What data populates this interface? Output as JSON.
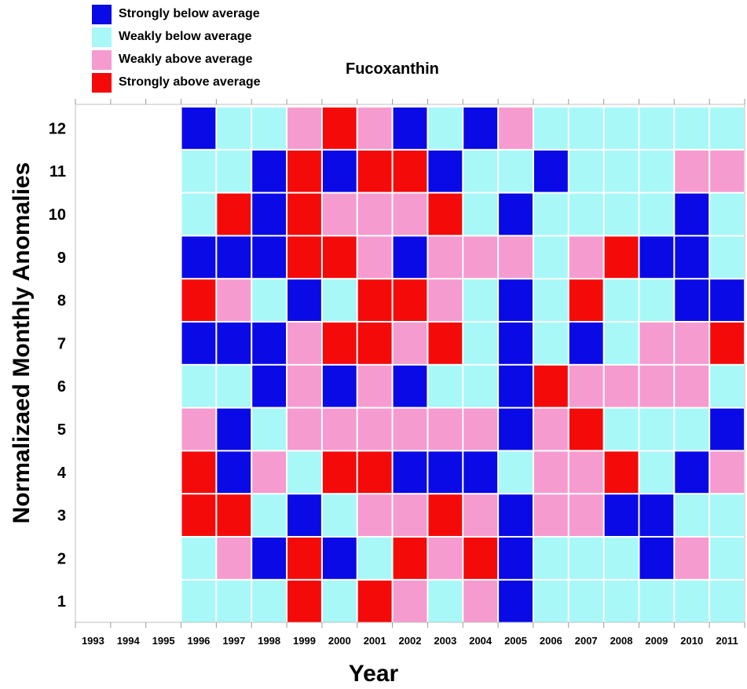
{
  "legend": [
    {
      "label": "Strongly below average",
      "color": "#0a0ae6"
    },
    {
      "label": "Weakly below average",
      "color": "#a8f8f8"
    },
    {
      "label": "Weakly above average",
      "color": "#f59bd0"
    },
    {
      "label": "Strongly above average",
      "color": "#f50a0a"
    }
  ],
  "chart_data": {
    "type": "heatmap",
    "title": "Fucoxanthin",
    "xlabel": "Year",
    "ylabel": "Normalizaed Monthly Anomalies",
    "x_categories": [
      "1993",
      "1994",
      "1995",
      "1996",
      "1997",
      "1998",
      "1999",
      "2000",
      "2001",
      "2002",
      "2003",
      "2004",
      "2005",
      "2006",
      "2007",
      "2008",
      "2009",
      "2010",
      "2011"
    ],
    "y_categories": [
      "1",
      "2",
      "3",
      "4",
      "5",
      "6",
      "7",
      "8",
      "9",
      "10",
      "11",
      "12"
    ],
    "value_scale": {
      "0": "Strongly below average",
      "1": "Weakly below average",
      "2": "Weakly above average",
      "3": "Strongly above average"
    },
    "rows": [
      {
        "month": "12",
        "values": [
          null,
          null,
          null,
          0,
          1,
          1,
          2,
          3,
          2,
          0,
          1,
          0,
          2,
          1,
          1,
          1,
          1,
          1,
          1
        ]
      },
      {
        "month": "11",
        "values": [
          null,
          null,
          null,
          1,
          1,
          0,
          3,
          0,
          3,
          3,
          0,
          1,
          1,
          0,
          1,
          1,
          1,
          2,
          2
        ]
      },
      {
        "month": "10",
        "values": [
          null,
          null,
          null,
          1,
          3,
          0,
          3,
          2,
          2,
          2,
          3,
          1,
          0,
          1,
          1,
          1,
          1,
          0,
          1
        ]
      },
      {
        "month": "9",
        "values": [
          null,
          null,
          null,
          0,
          0,
          0,
          3,
          3,
          2,
          0,
          2,
          2,
          2,
          1,
          2,
          3,
          0,
          0,
          1
        ]
      },
      {
        "month": "8",
        "values": [
          null,
          null,
          null,
          3,
          2,
          1,
          0,
          1,
          3,
          3,
          2,
          1,
          0,
          1,
          3,
          1,
          1,
          0,
          0
        ]
      },
      {
        "month": "7",
        "values": [
          null,
          null,
          null,
          0,
          0,
          0,
          2,
          3,
          3,
          2,
          3,
          1,
          0,
          1,
          0,
          1,
          2,
          2,
          3
        ]
      },
      {
        "month": "6",
        "values": [
          null,
          null,
          null,
          1,
          1,
          0,
          2,
          0,
          2,
          0,
          1,
          1,
          0,
          3,
          2,
          2,
          2,
          2,
          1
        ]
      },
      {
        "month": "5",
        "values": [
          null,
          null,
          null,
          2,
          0,
          1,
          2,
          2,
          2,
          2,
          2,
          2,
          0,
          2,
          3,
          1,
          1,
          1,
          0
        ]
      },
      {
        "month": "4",
        "values": [
          null,
          null,
          null,
          3,
          0,
          2,
          1,
          3,
          3,
          0,
          0,
          0,
          1,
          2,
          2,
          3,
          1,
          0,
          2
        ]
      },
      {
        "month": "3",
        "values": [
          null,
          null,
          null,
          3,
          3,
          1,
          0,
          1,
          2,
          2,
          3,
          2,
          0,
          2,
          2,
          0,
          0,
          1,
          1
        ]
      },
      {
        "month": "2",
        "values": [
          null,
          null,
          null,
          1,
          2,
          0,
          3,
          0,
          1,
          3,
          2,
          3,
          0,
          1,
          1,
          1,
          0,
          2,
          1
        ]
      },
      {
        "month": "1",
        "values": [
          null,
          null,
          null,
          1,
          1,
          1,
          3,
          1,
          3,
          2,
          1,
          2,
          0,
          1,
          1,
          1,
          1,
          1,
          1
        ]
      }
    ],
    "legend_placement": "top-left",
    "grid": false
  }
}
